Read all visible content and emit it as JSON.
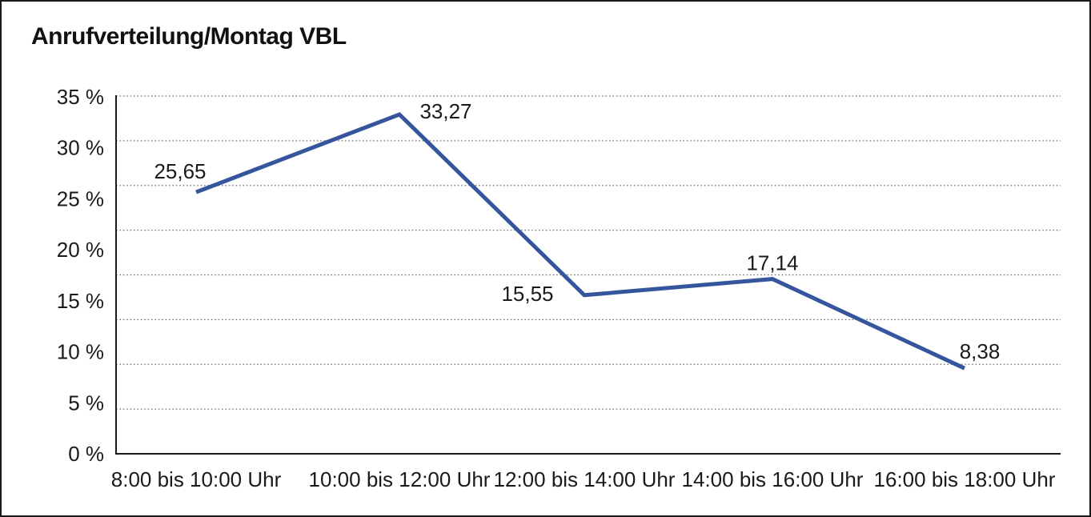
{
  "frame": {
    "background": "#ffffff",
    "border_color": "#1a1a1a"
  },
  "title": "Anrufverteilung/Montag VBL",
  "chart_data": {
    "type": "line",
    "title": "Anrufverteilung/Montag VBL",
    "categories": [
      "8:00 bis 10:00 Uhr",
      "10:00 bis 12:00 Uhr",
      "12:00 bis 14:00 Uhr",
      "14:00 bis 16:00 Uhr",
      "16:00 bis 18:00 Uhr"
    ],
    "values": [
      25.65,
      33.27,
      15.55,
      17.14,
      8.38
    ],
    "value_labels": [
      "25,65",
      "33,27",
      "15,55",
      "17,14",
      "8,38"
    ],
    "xlabel": "",
    "ylabel": "",
    "ylim": [
      0,
      35
    ],
    "ytick_step": 5,
    "ytick_labels_top_to_bottom": [
      "35 %",
      "30 %",
      "25 %",
      "20 %",
      "15 %",
      "10 %",
      "5 %",
      "0 %"
    ],
    "grid": "horizontal-dotted",
    "gridline_color": "#6e6e6e",
    "axis_color": "#1a1a1a",
    "text_color": "#1a1a1a",
    "line_color": "#35569D",
    "line_width": 5,
    "markers": "none",
    "legend": "none"
  }
}
